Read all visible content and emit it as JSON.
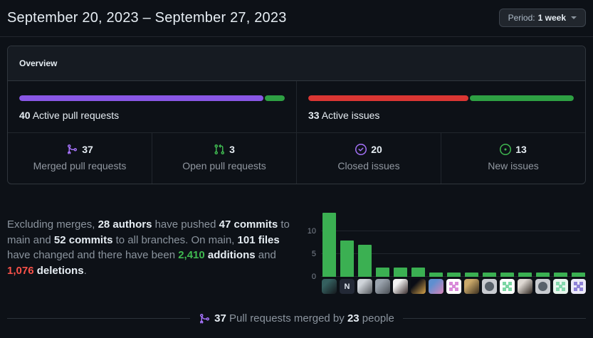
{
  "header": {
    "title": "September 20, 2023 – September 27, 2023",
    "period_label": "Period:",
    "period_value": "1 week"
  },
  "overview": {
    "title": "Overview",
    "pull_requests_bar": {
      "count": "40",
      "label": "Active pull requests",
      "segments": [
        {
          "name": "merged",
          "pct": 92.5,
          "color": "#8957e5"
        },
        {
          "name": "open",
          "pct": 7.5,
          "color": "#2ea043"
        }
      ]
    },
    "issues_bar": {
      "count": "33",
      "label": "Active issues",
      "segments": [
        {
          "name": "closed",
          "pct": 60.6,
          "color": "#da3633"
        },
        {
          "name": "new",
          "pct": 39.4,
          "color": "#2ea043"
        }
      ]
    },
    "stats": [
      {
        "icon": "git-merge-icon",
        "icon_color": "#a371f7",
        "value": "37",
        "label": "Merged pull requests"
      },
      {
        "icon": "git-pull-request-icon",
        "icon_color": "#3fb950",
        "value": "3",
        "label": "Open pull requests"
      },
      {
        "icon": "issue-closed-icon",
        "icon_color": "#a371f7",
        "value": "20",
        "label": "Closed issues"
      },
      {
        "icon": "issue-opened-icon",
        "icon_color": "#3fb950",
        "value": "13",
        "label": "New issues"
      }
    ]
  },
  "summary": {
    "segments": [
      {
        "text": "Excluding merges, ",
        "style": "muted"
      },
      {
        "text": "28 authors",
        "style": "strong"
      },
      {
        "text": " have pushed ",
        "style": "muted"
      },
      {
        "text": "47 commits",
        "style": "strong"
      },
      {
        "text": " to main and ",
        "style": "muted"
      },
      {
        "text": "52 commits",
        "style": "strong"
      },
      {
        "text": " to all branches. On main, ",
        "style": "muted"
      },
      {
        "text": "101 files",
        "style": "strong"
      },
      {
        "text": " have changed and there have been ",
        "style": "muted"
      },
      {
        "text": "2,410",
        "style": "additions"
      },
      {
        "text": " ",
        "style": "muted"
      },
      {
        "text": "additions",
        "style": "strong"
      },
      {
        "text": " and ",
        "style": "muted"
      },
      {
        "text": "1,076",
        "style": "deletions"
      },
      {
        "text": " ",
        "style": "muted"
      },
      {
        "text": "deletions",
        "style": "strong"
      },
      {
        "text": ".",
        "style": "muted"
      }
    ]
  },
  "chart_data": {
    "type": "bar",
    "values": [
      14,
      8,
      7,
      2,
      2,
      2,
      1,
      1,
      1,
      1,
      1,
      1,
      1,
      1,
      1
    ],
    "yticks": [
      0,
      5,
      10
    ],
    "ylim": [
      0,
      15
    ],
    "bar_color": "#3bb052",
    "grid": true,
    "legend_position": "none",
    "avatars": [
      {
        "type": "photo",
        "c1": "#35605f",
        "c2": "#14181d"
      },
      {
        "type": "letter",
        "c1": "#232936",
        "c2": "#dfe6ee",
        "letter": "N"
      },
      {
        "type": "photo",
        "c1": "#cfd4d9",
        "c2": "#55595e"
      },
      {
        "type": "photo",
        "c1": "#9aa3ad",
        "c2": "#4a4f55"
      },
      {
        "type": "photo",
        "c1": "#f2f2f2",
        "c2": "#3a2e2e"
      },
      {
        "type": "photo",
        "c1": "#0b0d16",
        "c2": "#d8a44a"
      },
      {
        "type": "photo",
        "c1": "#5f8fd0",
        "c2": "#d984b8"
      },
      {
        "type": "identicon",
        "c1": "#ffffff",
        "c2": "#d98ad9"
      },
      {
        "type": "photo",
        "c1": "#caa96a",
        "c2": "#3c2f1e"
      },
      {
        "type": "octocat",
        "c1": "#c9ccd1",
        "c2": "#59626b"
      },
      {
        "type": "identicon",
        "c1": "#ffffff",
        "c2": "#7cd6a4"
      },
      {
        "type": "photo",
        "c1": "#ded9d3",
        "c2": "#2e2620"
      },
      {
        "type": "octocat",
        "c1": "#c9ccd1",
        "c2": "#59626b"
      },
      {
        "type": "identicon",
        "c1": "#e9f6ee",
        "c2": "#86d9ae"
      },
      {
        "type": "identicon",
        "c1": "#eceaf8",
        "c2": "#8f83d8"
      }
    ]
  },
  "footer": {
    "count_prs": "37",
    "mid_text": " Pull requests merged by ",
    "count_people": "23",
    "end_text": " people"
  }
}
